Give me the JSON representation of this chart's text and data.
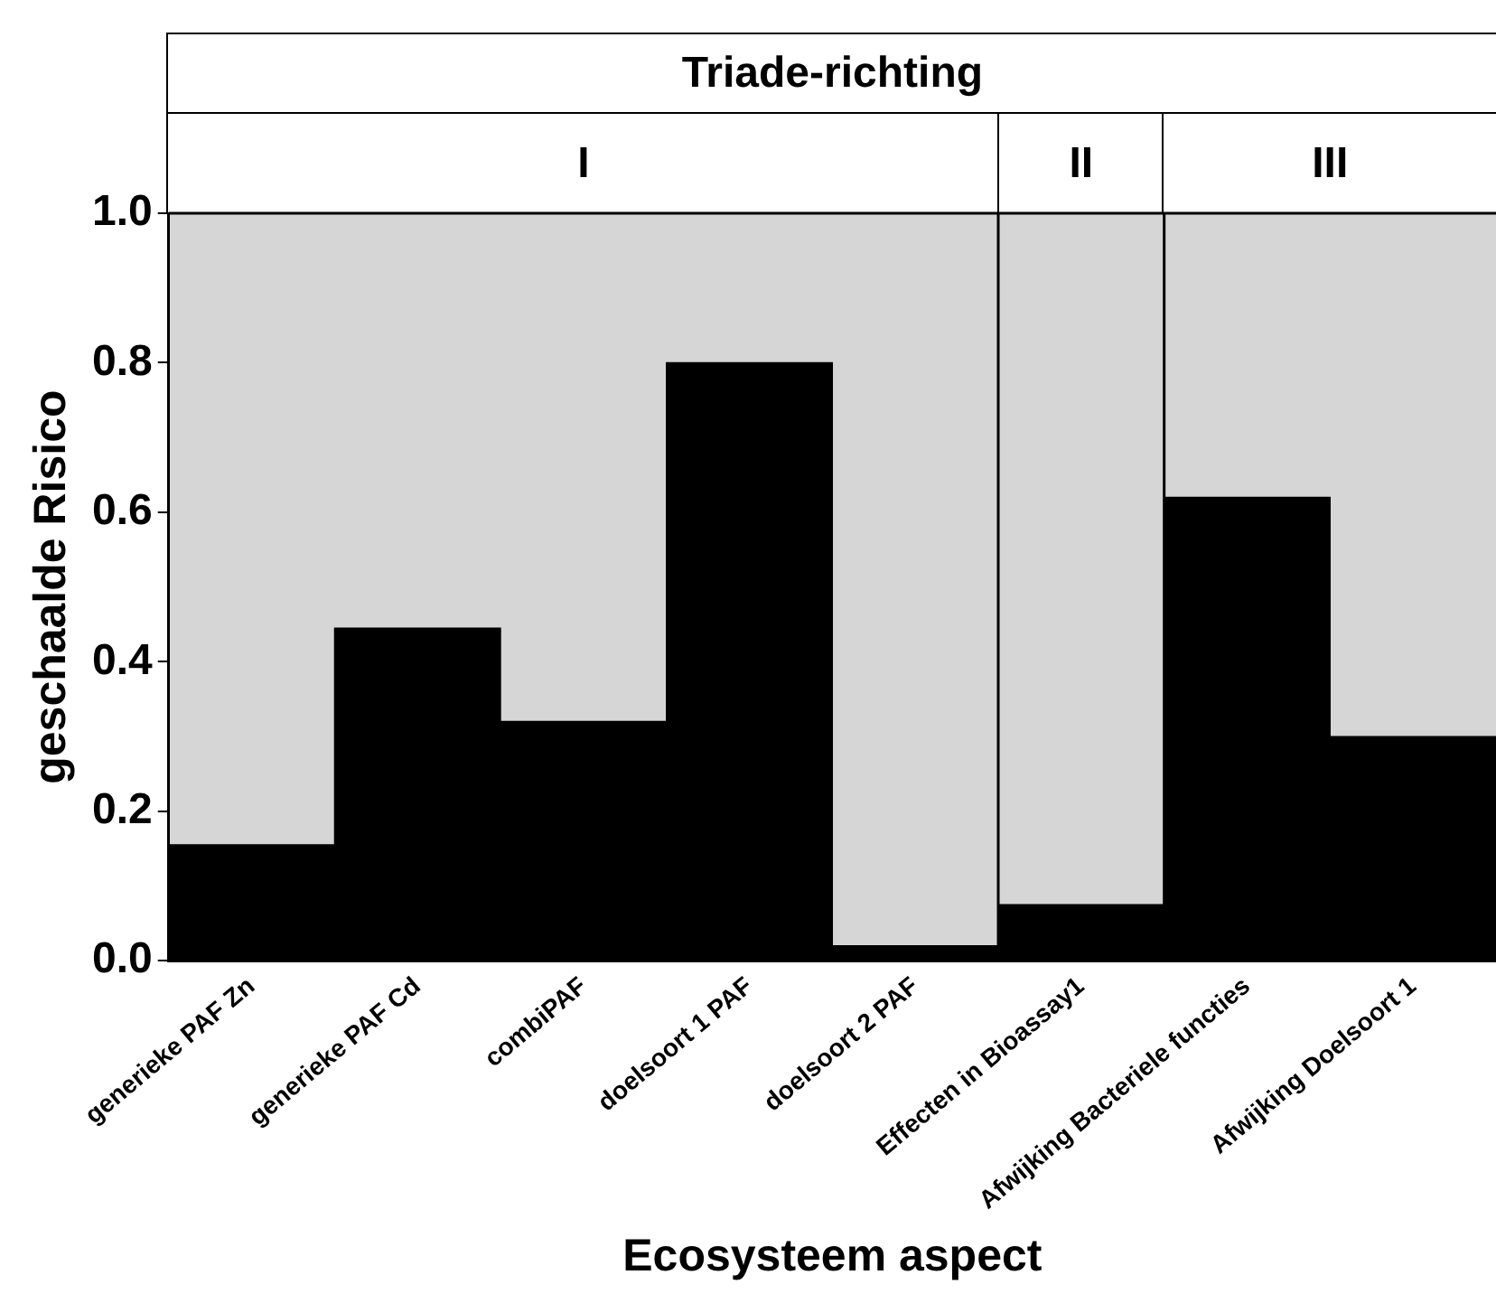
{
  "chart_data": {
    "type": "bar",
    "title": "Triade-richting",
    "xlabel": "Ecosysteem aspect",
    "ylabel": "geschaalde Risico",
    "categories": [
      "generieke PAF Zn",
      "generieke PAF Cd",
      "combiPAF",
      "doelsoort 1 PAF",
      "doelsoort 2 PAF",
      "Effecten in Bioassay1",
      "Afwijking Bacteriele functies",
      "Afwijking Doelsoort 1"
    ],
    "values": [
      0.155,
      0.445,
      0.32,
      0.8,
      0.02,
      0.075,
      0.62,
      0.3
    ],
    "color": "#000000",
    "ylim": [
      0,
      1
    ],
    "yticks": [
      {
        "value": 0,
        "label": "0.0"
      },
      {
        "value": 0.2,
        "label": "0.2"
      },
      {
        "value": 0.4,
        "label": "0.4"
      },
      {
        "value": 0.6,
        "label": "0.6"
      },
      {
        "value": 0.8,
        "label": "0.8"
      },
      {
        "value": 1,
        "label": "1.0"
      }
    ],
    "bands": [
      {
        "axis": "x",
        "from": "generieke PAF Zn",
        "to": "doelsoort 2 PAF",
        "label": "I",
        "color": "#d6d6d6"
      },
      {
        "axis": "x",
        "from": "Effecten in Bioassay1",
        "to": "Effecten in Bioassay1",
        "label": "II",
        "color": "#d6d6d6"
      },
      {
        "axis": "x",
        "from": "Afwijking Bacteriele functies",
        "to": "Afwijking Doelsoort 1",
        "label": "III",
        "color": "#d6d6d6"
      }
    ],
    "grid": false,
    "legend": false
  }
}
